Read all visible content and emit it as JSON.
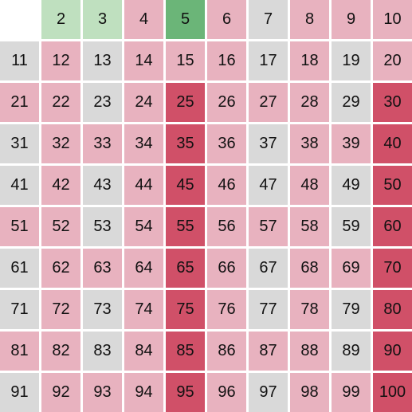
{
  "board": {
    "numbers": [
      "",
      "2",
      "3",
      "4",
      "5",
      "6",
      "7",
      "8",
      "9",
      "10",
      "11",
      "12",
      "13",
      "14",
      "15",
      "16",
      "17",
      "18",
      "19",
      "20",
      "21",
      "22",
      "23",
      "24",
      "25",
      "26",
      "27",
      "28",
      "29",
      "30",
      "31",
      "32",
      "33",
      "34",
      "35",
      "36",
      "37",
      "38",
      "39",
      "40",
      "41",
      "42",
      "43",
      "44",
      "45",
      "46",
      "47",
      "48",
      "49",
      "50",
      "51",
      "52",
      "53",
      "54",
      "55",
      "56",
      "57",
      "58",
      "59",
      "60",
      "61",
      "62",
      "63",
      "64",
      "65",
      "66",
      "67",
      "68",
      "69",
      "70",
      "71",
      "72",
      "73",
      "74",
      "75",
      "76",
      "77",
      "78",
      "79",
      "80",
      "81",
      "82",
      "83",
      "84",
      "85",
      "86",
      "87",
      "88",
      "89",
      "90",
      "91",
      "92",
      "93",
      "94",
      "95",
      "96",
      "97",
      "98",
      "99",
      "100"
    ],
    "selected_prime": "5",
    "colors": {
      "empty": "#ffffff",
      "prime_found": "#bfe0bf",
      "prime_selected": "#6bb578",
      "composite_other": "#e8b2bf",
      "multiple_of_selected": "#d05068",
      "unmarked": "#d9d9d9"
    },
    "cell_states": [
      "empty",
      "prime_found",
      "prime_found",
      "composite_other",
      "prime_selected",
      "composite_other",
      "unmarked",
      "composite_other",
      "composite_other",
      "composite_other",
      "unmarked",
      "composite_other",
      "unmarked",
      "composite_other",
      "composite_other",
      "composite_other",
      "unmarked",
      "composite_other",
      "unmarked",
      "composite_other",
      "composite_other",
      "composite_other",
      "unmarked",
      "composite_other",
      "multiple_of_selected",
      "composite_other",
      "composite_other",
      "composite_other",
      "unmarked",
      "multiple_of_selected",
      "unmarked",
      "composite_other",
      "composite_other",
      "composite_other",
      "multiple_of_selected",
      "composite_other",
      "unmarked",
      "composite_other",
      "composite_other",
      "multiple_of_selected",
      "unmarked",
      "composite_other",
      "unmarked",
      "composite_other",
      "multiple_of_selected",
      "composite_other",
      "unmarked",
      "composite_other",
      "unmarked",
      "multiple_of_selected",
      "composite_other",
      "composite_other",
      "unmarked",
      "composite_other",
      "multiple_of_selected",
      "composite_other",
      "composite_other",
      "composite_other",
      "unmarked",
      "multiple_of_selected",
      "unmarked",
      "composite_other",
      "composite_other",
      "composite_other",
      "multiple_of_selected",
      "composite_other",
      "unmarked",
      "composite_other",
      "composite_other",
      "multiple_of_selected",
      "unmarked",
      "composite_other",
      "unmarked",
      "composite_other",
      "multiple_of_selected",
      "composite_other",
      "unmarked",
      "composite_other",
      "unmarked",
      "multiple_of_selected",
      "composite_other",
      "composite_other",
      "unmarked",
      "composite_other",
      "multiple_of_selected",
      "composite_other",
      "composite_other",
      "composite_other",
      "unmarked",
      "multiple_of_selected",
      "unmarked",
      "composite_other",
      "composite_other",
      "composite_other",
      "multiple_of_selected",
      "composite_other",
      "unmarked",
      "composite_other",
      "composite_other",
      "multiple_of_selected"
    ]
  }
}
